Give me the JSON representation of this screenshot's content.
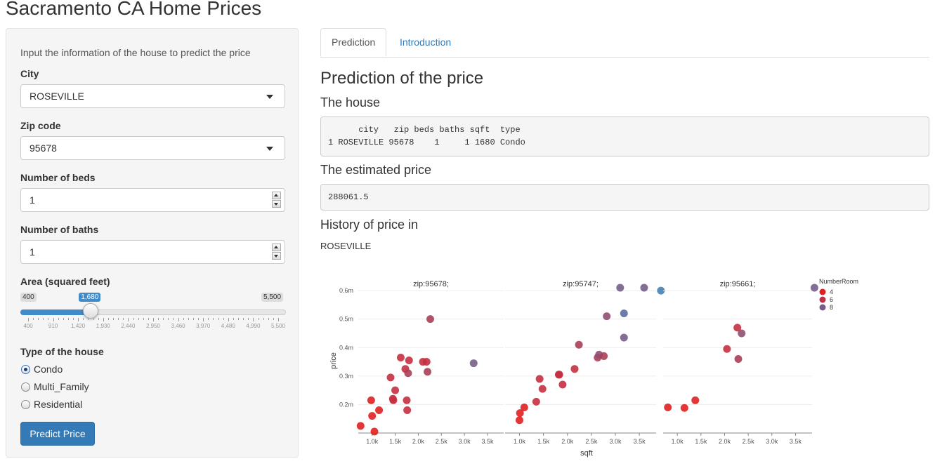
{
  "app_title": "Sacramento CA Home Prices",
  "sidebar": {
    "intro": "Input the information of the house to predict the price",
    "city": {
      "label": "City",
      "value": "ROSEVILLE"
    },
    "zip": {
      "label": "Zip code",
      "value": "95678"
    },
    "beds": {
      "label": "Number of beds",
      "value": "1"
    },
    "baths": {
      "label": "Number of baths",
      "value": "1"
    },
    "area": {
      "label": "Area (squared feet)",
      "min": "400",
      "max": "5,500",
      "value": "1,680",
      "value_num": 1680,
      "min_num": 400,
      "max_num": 5500,
      "ticks": [
        "400",
        "910",
        "1,420",
        "1,930",
        "2,440",
        "2,950",
        "3,460",
        "3,970",
        "4,480",
        "4,990",
        "5,500"
      ]
    },
    "type": {
      "label": "Type of the house",
      "options": [
        "Condo",
        "Multi_Family",
        "Residential"
      ],
      "selected": "Condo"
    },
    "button": "Predict Price"
  },
  "tabs": [
    {
      "label": "Prediction",
      "active": true
    },
    {
      "label": "Introduction",
      "active": false
    }
  ],
  "main": {
    "heading": "Prediction of the price",
    "house_heading": "The house",
    "house_table_header": "      city   zip beds baths sqft  type",
    "house_table_row": "1 ROSEVILLE 95678    1     1 1680 Condo",
    "estimate_heading": "The estimated price",
    "estimate_value": "288061.5",
    "history_heading": "History of price in",
    "history_city": "ROSEVILLE"
  },
  "chart_data": {
    "type": "scatter",
    "xlabel": "sqft",
    "ylabel": "price",
    "legend_title": "NumberRoom",
    "legend": [
      {
        "label": "4",
        "color": "#e02020"
      },
      {
        "label": "6",
        "color": "#c0304a"
      },
      {
        "label": "8",
        "color": "#7a5a88"
      }
    ],
    "facets": [
      {
        "name": "zip:95678;",
        "points": [
          {
            "x": 750,
            "y": 125000,
            "c": 4
          },
          {
            "x": 1000,
            "y": 160000,
            "c": 4
          },
          {
            "x": 980,
            "y": 215000,
            "c": 4
          },
          {
            "x": 1050,
            "y": 105000,
            "c": 4
          },
          {
            "x": 1150,
            "y": 180000,
            "c": 4
          },
          {
            "x": 1400,
            "y": 295000,
            "c": 5
          },
          {
            "x": 1450,
            "y": 220000,
            "c": 5
          },
          {
            "x": 1460,
            "y": 215000,
            "c": 5
          },
          {
            "x": 1500,
            "y": 250000,
            "c": 5
          },
          {
            "x": 1620,
            "y": 365000,
            "c": 5
          },
          {
            "x": 1720,
            "y": 325000,
            "c": 5
          },
          {
            "x": 1750,
            "y": 215000,
            "c": 5
          },
          {
            "x": 1760,
            "y": 180000,
            "c": 5
          },
          {
            "x": 1800,
            "y": 355000,
            "c": 5
          },
          {
            "x": 1780,
            "y": 310000,
            "c": 6
          },
          {
            "x": 2100,
            "y": 350000,
            "c": 5
          },
          {
            "x": 2180,
            "y": 350000,
            "c": 5
          },
          {
            "x": 2200,
            "y": 315000,
            "c": 6
          },
          {
            "x": 2260,
            "y": 500000,
            "c": 6
          },
          {
            "x": 3200,
            "y": 345000,
            "c": 8
          }
        ]
      },
      {
        "name": "zip:95747;",
        "points": [
          {
            "x": 1000,
            "y": 145000,
            "c": 4
          },
          {
            "x": 1010,
            "y": 170000,
            "c": 4
          },
          {
            "x": 1100,
            "y": 190000,
            "c": 4
          },
          {
            "x": 1350,
            "y": 210000,
            "c": 5
          },
          {
            "x": 1420,
            "y": 290000,
            "c": 5
          },
          {
            "x": 1480,
            "y": 255000,
            "c": 5
          },
          {
            "x": 1820,
            "y": 305000,
            "c": 5
          },
          {
            "x": 1830,
            "y": 305000,
            "c": 5
          },
          {
            "x": 1900,
            "y": 270000,
            "c": 5
          },
          {
            "x": 2150,
            "y": 325000,
            "c": 5
          },
          {
            "x": 2240,
            "y": 410000,
            "c": 6
          },
          {
            "x": 2630,
            "y": 365000,
            "c": 6
          },
          {
            "x": 2660,
            "y": 375000,
            "c": 7
          },
          {
            "x": 2760,
            "y": 370000,
            "c": 6
          },
          {
            "x": 2820,
            "y": 510000,
            "c": 7
          },
          {
            "x": 3100,
            "y": 610000,
            "c": 8
          },
          {
            "x": 3180,
            "y": 435000,
            "c": 8
          },
          {
            "x": 3180,
            "y": 520000,
            "c": 9
          },
          {
            "x": 3600,
            "y": 610000,
            "c": 8
          },
          {
            "x": 3950,
            "y": 600000,
            "c": 10
          }
        ]
      },
      {
        "name": "zip:95661;",
        "points": [
          {
            "x": 800,
            "y": 190000,
            "c": 4
          },
          {
            "x": 1150,
            "y": 188000,
            "c": 4
          },
          {
            "x": 1380,
            "y": 215000,
            "c": 4
          },
          {
            "x": 2050,
            "y": 395000,
            "c": 5
          },
          {
            "x": 2270,
            "y": 470000,
            "c": 5
          },
          {
            "x": 2290,
            "y": 360000,
            "c": 6
          },
          {
            "x": 2360,
            "y": 450000,
            "c": 7
          },
          {
            "x": 3900,
            "y": 610000,
            "c": 8
          }
        ]
      }
    ],
    "x_ticks": [
      "1.0k",
      "1.5k",
      "2.0k",
      "2.5k",
      "3.0k",
      "3.5k"
    ],
    "y_ticks": [
      "0.2m",
      "0.3m",
      "0.4m",
      "0.5m",
      "0.6m"
    ],
    "xlim": [
      700,
      3850
    ],
    "ylim": [
      100000,
      615000
    ]
  }
}
